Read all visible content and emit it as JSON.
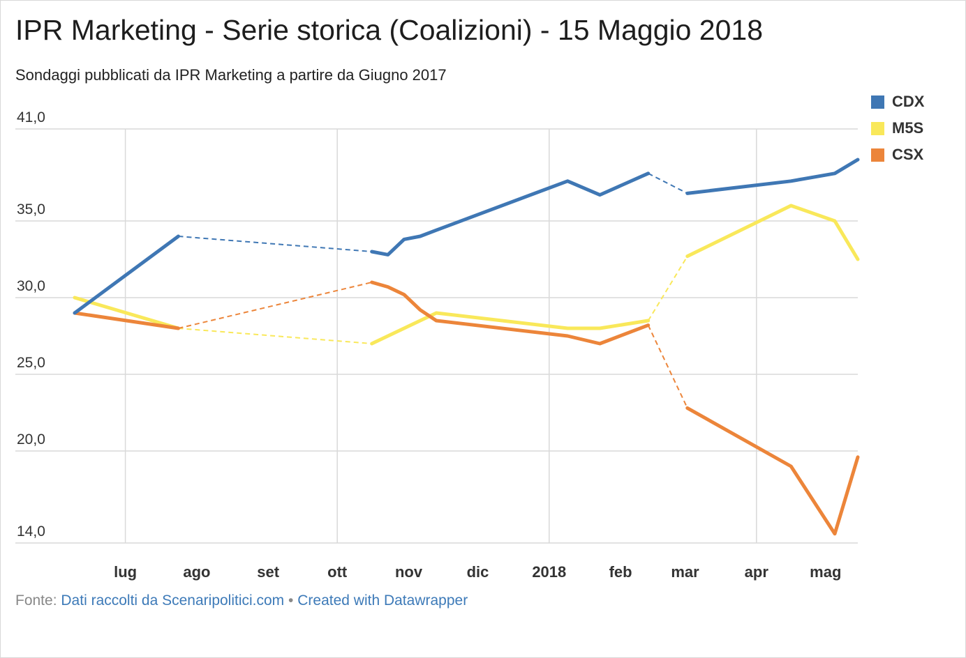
{
  "header": {
    "title": "IPR Marketing - Serie storica (Coalizioni) - 15 Maggio 2018",
    "subtitle": "Sondaggi pubblicati da IPR Marketing a partire da Giugno 2017"
  },
  "footer": {
    "source_label": "Fonte:",
    "source_link": "Dati raccolti da Scenaripolitici.com",
    "separator": "•",
    "credit_link": "Created with Datawrapper"
  },
  "legend": [
    {
      "name": "CDX",
      "color": "#3f77b4"
    },
    {
      "name": "M5S",
      "color": "#f9e85a"
    },
    {
      "name": "CSX",
      "color": "#ec853a"
    }
  ],
  "chart_data": {
    "type": "line",
    "title": "IPR Marketing - Serie storica (Coalizioni) - 15 Maggio 2018",
    "subtitle": "Sondaggi pubblicati da IPR Marketing a partire da Giugno 2017",
    "xlabel": "",
    "ylabel": "",
    "xlim": [
      "2017-06-09",
      "2018-05-15"
    ],
    "ylim": [
      14,
      41
    ],
    "yticks": [
      14,
      20,
      25,
      30,
      35,
      41
    ],
    "ytick_labels": [
      "14,0",
      "20,0",
      "25,0",
      "30,0",
      "35,0",
      "41,0"
    ],
    "xticks": [
      {
        "date": "2017-07-01",
        "label": "lug"
      },
      {
        "date": "2017-08-01",
        "label": "ago"
      },
      {
        "date": "2017-09-01",
        "label": "set"
      },
      {
        "date": "2017-10-01",
        "label": "ott"
      },
      {
        "date": "2017-11-01",
        "label": "nov"
      },
      {
        "date": "2017-12-01",
        "label": "dic"
      },
      {
        "date": "2018-01-01",
        "label": "2018"
      },
      {
        "date": "2018-02-01",
        "label": "feb"
      },
      {
        "date": "2018-03-01",
        "label": "mar"
      },
      {
        "date": "2018-04-01",
        "label": "apr"
      },
      {
        "date": "2018-05-01",
        "label": "mag"
      }
    ],
    "vgrid_dates": [
      "2017-07-01",
      "2017-10-01",
      "2018-01-01",
      "2018-04-01"
    ],
    "grid": true,
    "legend_position": "top-right",
    "series": [
      {
        "name": "CDX",
        "color": "#3f77b4",
        "points": [
          {
            "x": "2017-06-09",
            "y": 29.0
          },
          {
            "x": "2017-07-24",
            "y": 34.0
          },
          {
            "x": "2017-10-16",
            "y": 33.0
          },
          {
            "x": "2017-10-23",
            "y": 32.8
          },
          {
            "x": "2017-10-30",
            "y": 33.8
          },
          {
            "x": "2017-11-06",
            "y": 34.0
          },
          {
            "x": "2017-11-13",
            "y": 34.4
          },
          {
            "x": "2018-01-09",
            "y": 37.6
          },
          {
            "x": "2018-01-23",
            "y": 36.7
          },
          {
            "x": "2018-02-13",
            "y": 38.1
          },
          {
            "x": "2018-03-02",
            "y": 36.8
          },
          {
            "x": "2018-04-16",
            "y": 37.6
          },
          {
            "x": "2018-05-05",
            "y": 38.1
          },
          {
            "x": "2018-05-15",
            "y": 39.0
          }
        ],
        "dashed_segments": [
          [
            1,
            2
          ],
          [
            9,
            10
          ]
        ]
      },
      {
        "name": "M5S",
        "color": "#f9e85a",
        "points": [
          {
            "x": "2017-06-09",
            "y": 30.0
          },
          {
            "x": "2017-07-24",
            "y": 28.0
          },
          {
            "x": "2017-10-16",
            "y": 27.0
          },
          {
            "x": "2017-11-13",
            "y": 29.0
          },
          {
            "x": "2018-01-09",
            "y": 28.0
          },
          {
            "x": "2018-01-23",
            "y": 28.0
          },
          {
            "x": "2018-02-13",
            "y": 28.5
          },
          {
            "x": "2018-03-02",
            "y": 32.7
          },
          {
            "x": "2018-04-16",
            "y": 36.0
          },
          {
            "x": "2018-05-05",
            "y": 35.0
          },
          {
            "x": "2018-05-15",
            "y": 32.5
          }
        ],
        "dashed_segments": [
          [
            1,
            2
          ],
          [
            6,
            7
          ]
        ]
      },
      {
        "name": "CSX",
        "color": "#ec853a",
        "points": [
          {
            "x": "2017-06-09",
            "y": 29.0
          },
          {
            "x": "2017-07-24",
            "y": 28.0
          },
          {
            "x": "2017-10-16",
            "y": 31.0
          },
          {
            "x": "2017-10-23",
            "y": 30.7
          },
          {
            "x": "2017-10-30",
            "y": 30.2
          },
          {
            "x": "2017-11-06",
            "y": 29.2
          },
          {
            "x": "2017-11-13",
            "y": 28.5
          },
          {
            "x": "2018-01-09",
            "y": 27.5
          },
          {
            "x": "2018-01-23",
            "y": 27.0
          },
          {
            "x": "2018-02-13",
            "y": 28.2
          },
          {
            "x": "2018-03-02",
            "y": 22.8
          },
          {
            "x": "2018-04-16",
            "y": 19.0
          },
          {
            "x": "2018-05-05",
            "y": 14.6
          },
          {
            "x": "2018-05-15",
            "y": 19.6
          }
        ],
        "dashed_segments": [
          [
            1,
            2
          ],
          [
            9,
            10
          ]
        ]
      }
    ]
  }
}
